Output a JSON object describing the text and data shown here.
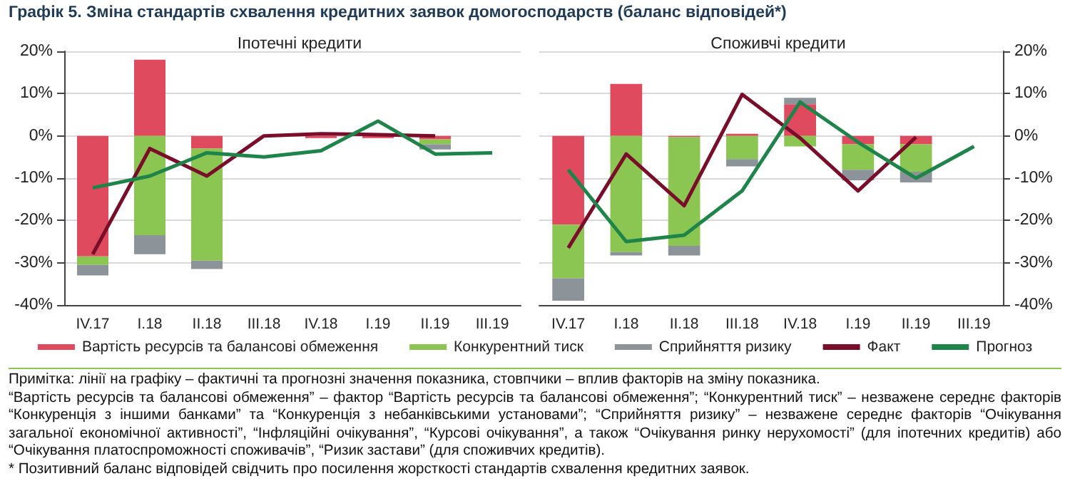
{
  "chart_data": [
    {
      "type": "bar",
      "title": "Графік 5. Зміна стандартів схвалення кредитних заявок домогосподарств (баланс відповідей*)",
      "subtitle": "Іпотечні кредити",
      "categories": [
        "IV.17",
        "I.18",
        "II.18",
        "III.18",
        "IV.18",
        "I.19",
        "II.19",
        "III.19"
      ],
      "stacked": true,
      "legend": "bottom",
      "grid": "y",
      "marker": "none",
      "ylim": [
        -40,
        20
      ],
      "yticks": [
        {
          "value": -40,
          "label": "-40%"
        },
        {
          "value": -30,
          "label": "-30%"
        },
        {
          "value": -20,
          "label": "-20%"
        },
        {
          "value": -10,
          "label": "-10%"
        },
        {
          "value": 0,
          "label": "0%"
        },
        {
          "value": 10,
          "label": "10%"
        },
        {
          "value": 20,
          "label": "20%"
        }
      ],
      "series": [
        {
          "name": "Вартість ресурсів та балансові обмеження",
          "color": "#e04a5f",
          "values": [
            -28.5,
            18,
            -3,
            0,
            -0.5,
            -0.5,
            -0.8,
            null
          ]
        },
        {
          "name": "Конкурентний тиск",
          "color": "#8cc652",
          "values": [
            -2,
            -23.5,
            -26.5,
            0,
            0,
            0,
            -1.2,
            null
          ]
        },
        {
          "name": "Сприйняття ризику",
          "color": "#8c9499",
          "values": [
            -2.5,
            -4.5,
            -2,
            0,
            0,
            0,
            -1.2,
            null
          ]
        },
        {
          "name": "Факт",
          "type": "line",
          "color": "#7a0e2a",
          "values": [
            -28,
            -3,
            -9.5,
            0,
            0.5,
            0.3,
            0,
            null
          ]
        },
        {
          "name": "Прогноз",
          "type": "line",
          "color": "#1e8449",
          "values": [
            -12.3,
            -9.5,
            -4,
            -5,
            -3.5,
            3.5,
            -4.3,
            -4
          ]
        }
      ],
      "annotations": [
        "Примітка: лінії на графіку – фактичні та прогнозні значення показника, стовпчики – вплив факторів на зміну показника.",
        "“Вартість ресурсів та балансові обмеження” – фактор “Вартість ресурсів та балансові обмеження”; “Конкурентний тиск” – незважене середнє факторів “Конкуренція з іншими банками” та “Конкуренція з небанківськими установами”; “Сприйняття ризику” – незважене середнє факторів “Очікування загальної економічної активності”, “Інфляційні очікування”, “Курсові очікування”, а також “Очікування ринку нерухомості” (для іпотечних кредитів) або “Очікування платоспроможності споживачів”, “Ризик застави” (для споживчих кредитів).",
        "* Позитивний баланс відповідей свідчить про посилення жорсткості стандартів схвалення кредитних заявок."
      ]
    },
    {
      "type": "bar",
      "subtitle": "Споживчі кредити",
      "categories": [
        "IV.17",
        "I.18",
        "II.18",
        "III.18",
        "IV.18",
        "I.19",
        "II.19",
        "III.19"
      ],
      "stacked": true,
      "grid": "y",
      "marker": "none",
      "ylim": [
        -40,
        20
      ],
      "yticks": [
        {
          "value": -40,
          "label": "-40%"
        },
        {
          "value": -30,
          "label": "-30%"
        },
        {
          "value": -20,
          "label": "-20%"
        },
        {
          "value": -10,
          "label": "-10%"
        },
        {
          "value": 0,
          "label": "0%"
        },
        {
          "value": 10,
          "label": "10%"
        },
        {
          "value": 20,
          "label": "20%"
        }
      ],
      "series": [
        {
          "color": "#e04a5f",
          "values": [
            -21,
            12.3,
            -0.3,
            0.5,
            7.5,
            -2,
            -2,
            null
          ]
        },
        {
          "color": "#8cc652",
          "values": [
            -12.7,
            -27.5,
            -25.7,
            -5.5,
            -2.5,
            -6,
            -6.5,
            null
          ]
        },
        {
          "color": "#8c9499",
          "values": [
            -5.3,
            -0.8,
            -2.3,
            -1.7,
            1.5,
            -2.5,
            -2.5,
            null
          ]
        },
        {
          "type": "line",
          "color": "#7a0e2a",
          "values": [
            -26.5,
            -4.3,
            -16.5,
            9.8,
            -0.5,
            -13,
            -0.3,
            null
          ]
        },
        {
          "type": "line",
          "color": "#1e8449",
          "values": [
            -8,
            -25,
            -23.5,
            -13,
            8,
            -1.5,
            -10,
            -2.5
          ]
        }
      ]
    }
  ]
}
